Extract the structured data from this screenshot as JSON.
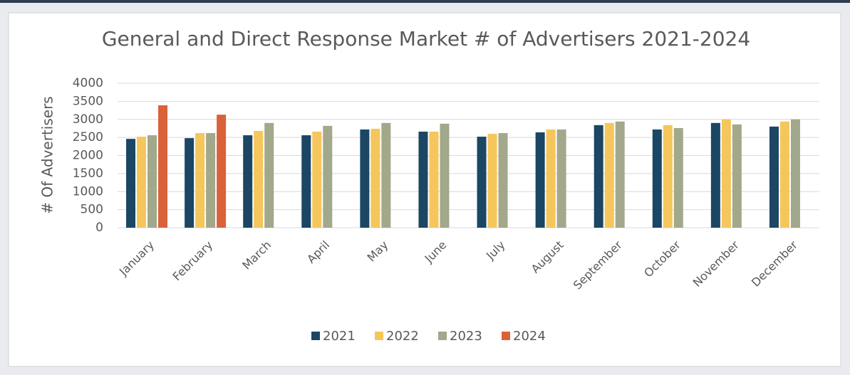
{
  "chart_data": {
    "type": "bar",
    "title": "General and Direct Response Market # of Advertisers 2021-2024",
    "y_label": "# Of Advertisers",
    "categories": [
      "January",
      "February",
      "March",
      "April",
      "May",
      "June",
      "July",
      "August",
      "September",
      "October",
      "November",
      "December"
    ],
    "series": [
      {
        "name": "2021",
        "color": "#1b4664",
        "values": [
          2460,
          2480,
          2560,
          2560,
          2720,
          2660,
          2520,
          2640,
          2840,
          2720,
          2900,
          2800
        ]
      },
      {
        "name": "2022",
        "color": "#f5c65b",
        "values": [
          2520,
          2620,
          2680,
          2660,
          2740,
          2660,
          2600,
          2720,
          2900,
          2840,
          3000,
          2940
        ]
      },
      {
        "name": "2023",
        "color": "#a2a88a",
        "values": [
          2560,
          2620,
          2900,
          2820,
          2900,
          2880,
          2620,
          2720,
          2940,
          2760,
          2860,
          3000
        ]
      },
      {
        "name": "2024",
        "color": "#d9623b",
        "values": [
          3390,
          3130,
          null,
          null,
          null,
          null,
          null,
          null,
          null,
          null,
          null,
          null
        ]
      }
    ],
    "ylim": [
      0,
      4000
    ],
    "yticks": [
      0,
      500,
      1000,
      1500,
      2000,
      2500,
      3000,
      3500,
      4000
    ],
    "grid": true
  }
}
